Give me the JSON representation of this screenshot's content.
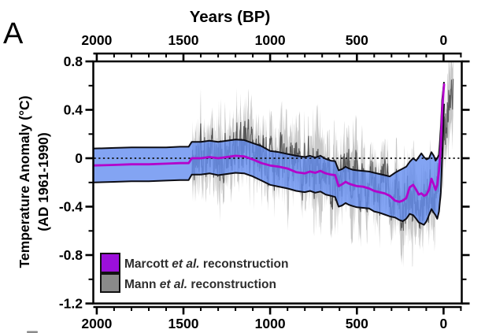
{
  "panel_label": "A",
  "title": "Years (BP)",
  "y_axis": {
    "label_line1": "Temperature Anomaly (°C)",
    "label_line2": "(AD 1961-1990)"
  },
  "legend": [
    {
      "swatch_color": "#9c0fdb",
      "pre": "Marcott ",
      "italic": "et al.",
      "post": " reconstruction"
    },
    {
      "swatch_color": "#8a8a8a",
      "pre": "Mann ",
      "italic": "et al.",
      "post": " reconstruction"
    }
  ],
  "colors": {
    "marcott_line": "#b303cb",
    "marcott_band_fill": "rgba(100,141,240,0.8)",
    "band_edge": "#0c0c14",
    "mann_dark": "#4f4f4f",
    "mann_light": "#bdbdbd",
    "axis": "#000000",
    "zero_line": "#111111"
  },
  "chart_data": {
    "type": "line",
    "title": "Years (BP)",
    "xlabel": "Years (BP)",
    "ylabel": "Temperature Anomaly (°C) (AD 1961-1990)",
    "x_range_bp": [
      2020,
      -105
    ],
    "ylim": [
      -1.2,
      0.8
    ],
    "x_ticks": [
      2000,
      1500,
      1000,
      500,
      0
    ],
    "x_tick_labels": [
      "2000",
      "1500",
      "1000",
      "500",
      "0"
    ],
    "x_minor_step": 100,
    "y_ticks": [
      0.8,
      0.4,
      0,
      -0.4,
      -0.8,
      -1.2
    ],
    "y_tick_labels": [
      "0.8",
      "0.4",
      "0",
      "-0.4",
      "-0.8",
      "-1.2"
    ],
    "y_minor_ticks": [
      0.6,
      0.2,
      -0.2,
      -0.6,
      -1.0
    ],
    "zero_line": 0,
    "grid": false,
    "legend_position": "lower-left",
    "series": [
      {
        "id": "marcott",
        "name": "Marcott et al. reconstruction",
        "units": "years BP vs °C anomaly",
        "points_tml": "each tuple = [yearBP, median, band_upper, band_lower]",
        "points": [
          [
            2020,
            -0.06,
            0.08,
            -0.2
          ],
          [
            1900,
            -0.055,
            0.085,
            -0.195
          ],
          [
            1800,
            -0.05,
            0.09,
            -0.19
          ],
          [
            1700,
            -0.05,
            0.09,
            -0.19
          ],
          [
            1600,
            -0.045,
            0.09,
            -0.185
          ],
          [
            1520,
            -0.04,
            0.095,
            -0.18
          ],
          [
            1470,
            -0.04,
            0.095,
            -0.18
          ],
          [
            1452,
            0.0,
            0.135,
            -0.135
          ],
          [
            1400,
            0.0,
            0.135,
            -0.135
          ],
          [
            1350,
            0.01,
            0.145,
            -0.125
          ],
          [
            1300,
            0.0,
            0.135,
            -0.14
          ],
          [
            1250,
            0.01,
            0.145,
            -0.13
          ],
          [
            1200,
            0.02,
            0.155,
            -0.12
          ],
          [
            1150,
            0.015,
            0.15,
            -0.125
          ],
          [
            1100,
            -0.01,
            0.125,
            -0.15
          ],
          [
            1050,
            -0.04,
            0.1,
            -0.185
          ],
          [
            1000,
            -0.06,
            0.06,
            -0.22
          ],
          [
            950,
            -0.07,
            0.05,
            -0.235
          ],
          [
            900,
            -0.085,
            0.035,
            -0.25
          ],
          [
            850,
            -0.115,
            0.02,
            -0.27
          ],
          [
            800,
            -0.125,
            0.01,
            -0.28
          ],
          [
            770,
            -0.11,
            0.02,
            -0.27
          ],
          [
            740,
            -0.12,
            0.005,
            -0.285
          ],
          [
            710,
            -0.105,
            0.02,
            -0.275
          ],
          [
            680,
            -0.125,
            -0.005,
            -0.3
          ],
          [
            650,
            -0.135,
            -0.02,
            -0.31
          ],
          [
            625,
            -0.14,
            -0.025,
            -0.32
          ],
          [
            605,
            -0.23,
            -0.1,
            -0.4
          ],
          [
            585,
            -0.215,
            -0.09,
            -0.39
          ],
          [
            565,
            -0.195,
            -0.07,
            -0.37
          ],
          [
            545,
            -0.21,
            -0.085,
            -0.385
          ],
          [
            525,
            -0.22,
            -0.095,
            -0.395
          ],
          [
            500,
            -0.23,
            -0.1,
            -0.405
          ],
          [
            465,
            -0.235,
            -0.105,
            -0.41
          ],
          [
            430,
            -0.25,
            -0.11,
            -0.415
          ],
          [
            400,
            -0.27,
            -0.12,
            -0.44
          ],
          [
            370,
            -0.28,
            -0.13,
            -0.45
          ],
          [
            340,
            -0.29,
            -0.14,
            -0.465
          ],
          [
            310,
            -0.31,
            -0.15,
            -0.48
          ],
          [
            280,
            -0.35,
            -0.12,
            -0.49
          ],
          [
            255,
            -0.36,
            -0.1,
            -0.51
          ],
          [
            235,
            -0.35,
            -0.085,
            -0.52
          ],
          [
            215,
            -0.33,
            -0.07,
            -0.5
          ],
          [
            195,
            -0.24,
            -0.03,
            -0.46
          ],
          [
            175,
            -0.22,
            0.0,
            -0.47
          ],
          [
            158,
            -0.26,
            -0.02,
            -0.5
          ],
          [
            143,
            -0.3,
            0.01,
            -0.53
          ],
          [
            128,
            -0.29,
            0.04,
            -0.54
          ],
          [
            113,
            -0.31,
            0.01,
            -0.55
          ],
          [
            98,
            -0.3,
            -0.01,
            -0.52
          ],
          [
            84,
            -0.26,
            0.0,
            -0.47
          ],
          [
            70,
            -0.17,
            0.05,
            -0.42
          ],
          [
            56,
            -0.22,
            0.02,
            -0.45
          ],
          [
            46,
            -0.26,
            -0.02,
            -0.47
          ],
          [
            36,
            -0.22,
            0.0,
            -0.5
          ],
          [
            26,
            -0.1,
            0.03,
            -0.44
          ],
          [
            16,
            0.1,
            0.24,
            -0.28
          ],
          [
            8,
            0.4,
            0.48,
            0.0
          ],
          [
            -3,
            0.61,
            0.63,
            0.45
          ]
        ]
      },
      {
        "id": "mann",
        "name": "Mann et al. reconstruction",
        "units": "years BP vs °C anomaly",
        "start_bp": 1450,
        "end_bp": -56,
        "step_years": 2,
        "trend": [
          [
            1450,
            -0.02
          ],
          [
            1400,
            0.01
          ],
          [
            1350,
            0.02
          ],
          [
            1300,
            0.03
          ],
          [
            1250,
            0.03
          ],
          [
            1200,
            0.05
          ],
          [
            1150,
            0.05
          ],
          [
            1100,
            0.03
          ],
          [
            1050,
            0.01
          ],
          [
            1000,
            0.0
          ],
          [
            950,
            -0.02
          ],
          [
            900,
            -0.05
          ],
          [
            850,
            -0.05
          ],
          [
            800,
            -0.08
          ],
          [
            750,
            -0.06
          ],
          [
            700,
            -0.1
          ],
          [
            650,
            -0.15
          ],
          [
            600,
            -0.17
          ],
          [
            550,
            -0.14
          ],
          [
            500,
            -0.17
          ],
          [
            450,
            -0.21
          ],
          [
            400,
            -0.24
          ],
          [
            350,
            -0.27
          ],
          [
            300,
            -0.31
          ],
          [
            250,
            -0.34
          ],
          [
            200,
            -0.37
          ],
          [
            150,
            -0.4
          ],
          [
            120,
            -0.38
          ],
          [
            100,
            -0.35
          ],
          [
            80,
            -0.31
          ],
          [
            60,
            -0.28
          ],
          [
            40,
            -0.22
          ],
          [
            25,
            -0.12
          ],
          [
            10,
            0.0
          ],
          [
            0,
            0.15
          ],
          [
            -15,
            0.35
          ],
          [
            -30,
            0.48
          ],
          [
            -45,
            0.58
          ],
          [
            -56,
            0.62
          ]
        ],
        "noise": {
          "seed": 20130308,
          "ar": 0.5,
          "amp": 0.36
        },
        "band": {
          "base_halfwidth": 0.15,
          "slow_ar": 0.9,
          "slow_amp": 0.09,
          "slow_gain": 1.6,
          "max_halfwidth": 0.38
        }
      }
    ]
  }
}
